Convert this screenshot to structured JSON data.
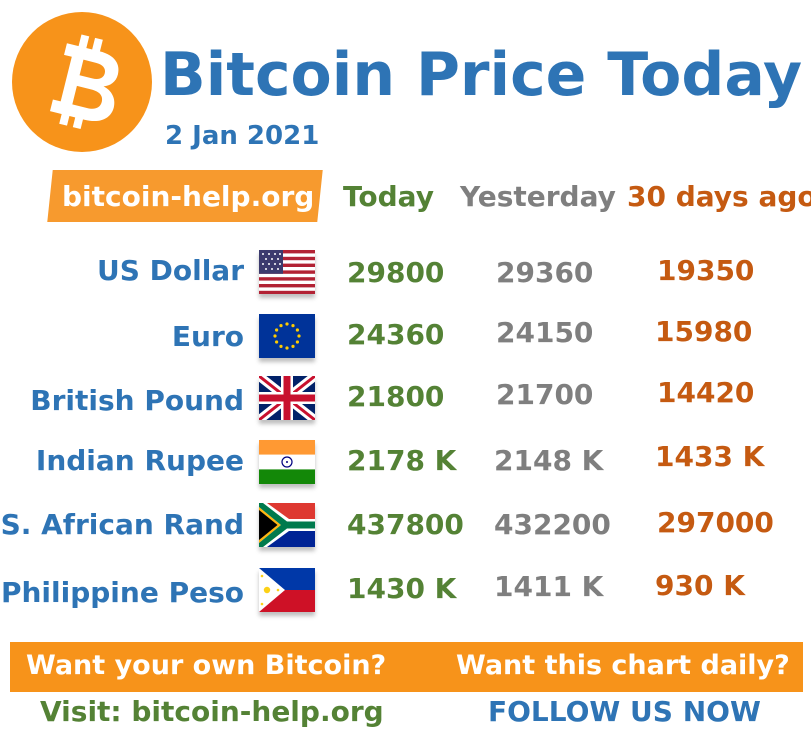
{
  "header": {
    "title": "Bitcoin Price Today",
    "date": "2 Jan 2021",
    "site_badge": "bitcoin-help.org"
  },
  "columns": {
    "today": "Today",
    "yesterday": "Yesterday",
    "thirty_days": "30 days ago"
  },
  "rows": [
    {
      "label": "US Dollar",
      "flag_icon": "us-flag-icon",
      "today": "29800",
      "yesterday": "29360",
      "thirty_days": "19350"
    },
    {
      "label": "Euro",
      "flag_icon": "eu-flag-icon",
      "today": "24360",
      "yesterday": "24150",
      "thirty_days": "15980"
    },
    {
      "label": "British Pound",
      "flag_icon": "uk-flag-icon",
      "today": "21800",
      "yesterday": "21700",
      "thirty_days": "14420"
    },
    {
      "label": "Indian Rupee",
      "flag_icon": "india-flag-icon",
      "today": "2178 K",
      "yesterday": "2148 K",
      "thirty_days": "1433 K"
    },
    {
      "label": "S. African Rand",
      "flag_icon": "south-africa-flag-icon",
      "today": "437800",
      "yesterday": "432200",
      "thirty_days": "297000"
    },
    {
      "label": "Philippine Peso",
      "flag_icon": "philippines-flag-icon",
      "today": "1430 K",
      "yesterday": "1411 K",
      "thirty_days": "930 K"
    }
  ],
  "footer": {
    "want_bitcoin": "Want your own Bitcoin?",
    "want_chart": "Want this chart daily?",
    "visit": "Visit: bitcoin-help.org",
    "follow": "FOLLOW US NOW"
  },
  "colors": {
    "brand_orange": "#f7931a",
    "title_blue": "#2e74b5",
    "today_green": "#548235",
    "yesterday_gray": "#7f7f7f",
    "thirty_days_orange": "#c55a11"
  }
}
